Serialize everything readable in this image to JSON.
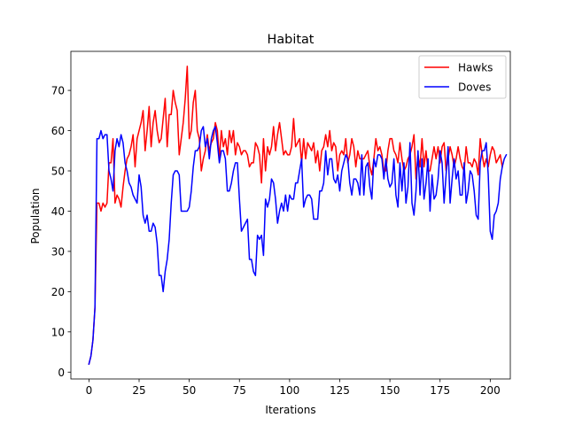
{
  "chart_data": {
    "type": "line",
    "title": "Habitat",
    "xlabel": "Iterations",
    "ylabel": "Population",
    "xlim": [
      -9,
      210
    ],
    "ylim": [
      -1.7,
      79.7
    ],
    "xticks": [
      0,
      25,
      50,
      75,
      100,
      125,
      150,
      175,
      200
    ],
    "yticks": [
      0,
      10,
      20,
      30,
      40,
      50,
      60,
      70
    ],
    "grid": false,
    "legend": "top-right",
    "series": [
      {
        "name": "Hawks",
        "color": "#ff0000",
        "values": [
          2,
          4,
          8,
          16,
          42,
          42,
          40,
          42,
          41,
          42,
          52,
          52,
          58,
          42,
          44,
          43,
          41,
          46,
          50,
          53,
          54,
          56,
          59,
          51,
          58,
          60,
          62,
          65,
          55,
          60,
          66,
          56,
          62,
          65,
          60,
          57,
          58,
          63,
          68,
          56,
          64,
          64,
          70,
          67,
          65,
          54,
          58,
          62,
          68,
          76,
          58,
          60,
          67,
          70,
          60,
          58,
          50,
          53,
          55,
          59,
          55,
          57,
          58,
          62,
          60,
          53,
          60,
          56,
          58,
          54,
          60,
          57,
          60,
          54,
          57,
          56,
          54,
          55,
          55,
          54,
          51,
          52,
          52,
          57,
          56,
          54,
          47,
          58,
          50,
          56,
          54,
          56,
          61,
          55,
          59,
          62,
          58,
          54,
          55,
          54,
          54,
          56,
          63,
          56,
          57,
          58,
          52,
          58,
          53,
          57,
          56,
          55,
          57,
          52,
          55,
          50,
          55,
          56,
          59,
          56,
          60,
          55,
          57,
          56,
          50,
          54,
          55,
          54,
          58,
          52,
          54,
          58,
          56,
          51,
          55,
          53,
          53,
          53,
          54,
          55,
          51,
          49,
          53,
          58,
          55,
          56,
          54,
          50,
          50,
          55,
          58,
          58,
          55,
          54,
          52,
          57,
          53,
          50,
          51,
          53,
          54,
          56,
          59,
          48,
          54,
          51,
          58,
          51,
          55,
          50,
          50,
          53,
          56,
          53,
          56,
          52,
          56,
          57,
          50,
          53,
          56,
          54,
          51,
          53,
          56,
          53,
          51,
          50,
          56,
          52,
          52,
          51,
          53,
          52,
          49,
          58,
          54,
          51,
          53,
          51,
          54,
          56,
          55,
          52,
          53,
          54,
          51
        ]
      },
      {
        "name": "Doves",
        "color": "#0000ff",
        "values": [
          2,
          4,
          8,
          16,
          58,
          58,
          60,
          58,
          59,
          59,
          50,
          48,
          45,
          55,
          58,
          56,
          59,
          57,
          52,
          50,
          47,
          46,
          44,
          43,
          42,
          49,
          46,
          39,
          37,
          39,
          35,
          35,
          37,
          36,
          32,
          24,
          24,
          20,
          25,
          28,
          33,
          42,
          49,
          50,
          50,
          49,
          40,
          40,
          40,
          40,
          41,
          45,
          51,
          55,
          55,
          56,
          60,
          61,
          56,
          58,
          53,
          58,
          60,
          61,
          57,
          52,
          55,
          55,
          53,
          45,
          45,
          47,
          50,
          52,
          52,
          43,
          35,
          36,
          37,
          38,
          28,
          28,
          25,
          24,
          34,
          33,
          34,
          29,
          43,
          41,
          43,
          48,
          47,
          43,
          37,
          40,
          42,
          40,
          44,
          40,
          44,
          43,
          43,
          47,
          47,
          50,
          53,
          41,
          43,
          44,
          44,
          43,
          38,
          38,
          38,
          45,
          45,
          47,
          55,
          49,
          53,
          53,
          48,
          47,
          49,
          45,
          50,
          52,
          54,
          53,
          47,
          44,
          48,
          48,
          47,
          44,
          54,
          44,
          51,
          52,
          46,
          43,
          53,
          51,
          54,
          54,
          53,
          48,
          53,
          48,
          46,
          47,
          53,
          44,
          41,
          52,
          45,
          52,
          42,
          46,
          57,
          42,
          39,
          45,
          55,
          44,
          53,
          43,
          47,
          53,
          40,
          49,
          43,
          44,
          48,
          55,
          52,
          42,
          49,
          56,
          42,
          48,
          53,
          48,
          50,
          44,
          44,
          52,
          42,
          45,
          50,
          49,
          45,
          39,
          38,
          52,
          55,
          55,
          57,
          49,
          35,
          33,
          39,
          40,
          42,
          48,
          51,
          53,
          54
        ]
      }
    ]
  }
}
